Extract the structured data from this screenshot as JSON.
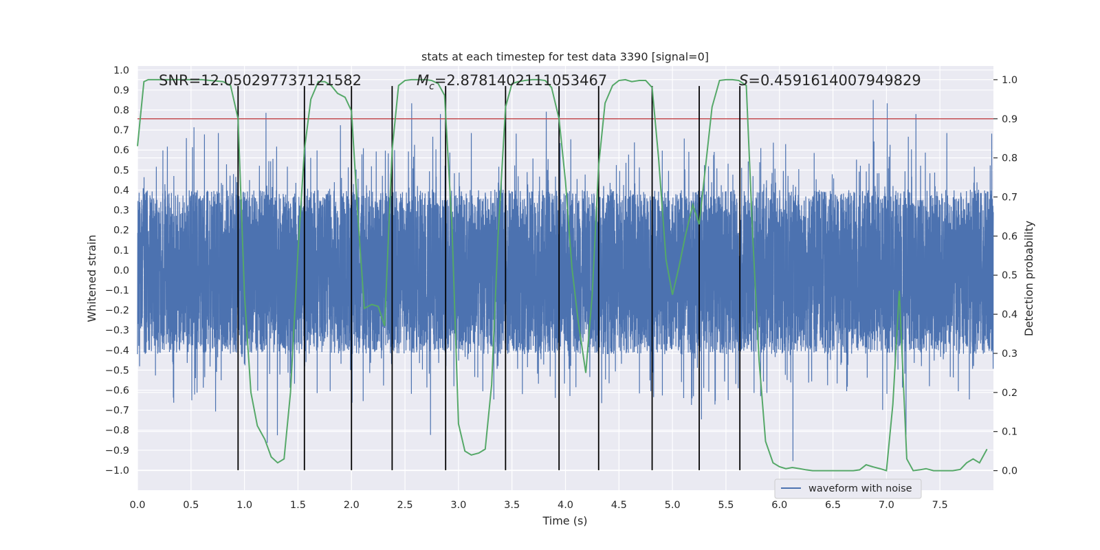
{
  "chart_data": {
    "type": "line",
    "title": "stats at each timestep for test data 3390 [signal=0]",
    "xlabel": "Time (s)",
    "ylabel": "Whitened strain",
    "y2label": "Detection probability",
    "xlim": [
      0,
      8
    ],
    "ylim": [
      -1.1,
      1.02
    ],
    "y2lim": [
      -0.05,
      1.035
    ],
    "x_ticks": [
      0.0,
      0.5,
      1.0,
      1.5,
      2.0,
      2.5,
      3.0,
      3.5,
      4.0,
      4.5,
      5.0,
      5.5,
      6.0,
      6.5,
      7.0,
      7.5
    ],
    "x_tick_labels": [
      "0.0",
      "0.5",
      "1.0",
      "1.5",
      "2.0",
      "2.5",
      "3.0",
      "3.5",
      "4.0",
      "4.5",
      "5.0",
      "5.5",
      "6.0",
      "6.5",
      "7.0",
      "7.5"
    ],
    "y_ticks": [
      1.0,
      0.9,
      0.8,
      0.7,
      0.6,
      0.5,
      0.4,
      0.3,
      0.2,
      0.1,
      0.0,
      -0.1,
      -0.2,
      -0.3,
      -0.4,
      -0.5,
      -0.6,
      -0.7,
      -0.8,
      -0.9,
      -1.0
    ],
    "y_tick_labels": [
      "1.0",
      "0.9",
      "0.8",
      "0.7",
      "0.6",
      "0.5",
      "0.4",
      "0.3",
      "0.2",
      "0.1",
      "0.0",
      "−0.1",
      "−0.2",
      "−0.3",
      "−0.4",
      "−0.5",
      "−0.6",
      "−0.7",
      "−0.8",
      "−0.9",
      "−1.0"
    ],
    "y2_ticks": [
      1.0,
      0.9,
      0.8,
      0.7,
      0.6,
      0.5,
      0.4,
      0.3,
      0.2,
      0.1,
      0.0
    ],
    "y2_tick_labels": [
      "1.0",
      "0.9",
      "0.8",
      "0.7",
      "0.6",
      "0.5",
      "0.4",
      "0.3",
      "0.2",
      "0.1",
      "0.0"
    ],
    "grid": true,
    "legend": {
      "placement": "lower-center",
      "entries": [
        "waveform with noise"
      ]
    },
    "annotations": {
      "snr": "SNR=12.050297737121582",
      "mc_symbol": "M",
      "mc_sub": "c",
      "mc_value": "=2.8781402111053467",
      "s_symbol": "S",
      "s_value": "=0.4591614007949829"
    },
    "threshold": 0.9,
    "vertical_lines_x": [
      0.94,
      1.56,
      2.0,
      2.38,
      2.88,
      3.44,
      3.94,
      4.31,
      4.81,
      5.25,
      5.63
    ],
    "series": [
      {
        "name": "waveform with noise",
        "axis": "left",
        "style": "noise",
        "core_range": [
          -0.42,
          0.4
        ],
        "spike_range": [
          -0.98,
          0.93
        ]
      },
      {
        "axis": "right",
        "style": "line",
        "x": [
          0.0,
          0.06,
          0.1,
          0.2,
          0.4,
          0.6,
          0.8,
          0.87,
          0.94,
          1.0,
          1.06,
          1.12,
          1.19,
          1.25,
          1.31,
          1.37,
          1.43,
          1.5,
          1.56,
          1.62,
          1.69,
          1.75,
          1.81,
          1.87,
          1.94,
          2.0,
          2.06,
          2.12,
          2.19,
          2.25,
          2.31,
          2.38,
          2.44,
          2.5,
          2.56,
          2.62,
          2.69,
          2.75,
          2.81,
          2.87,
          2.94,
          3.0,
          3.06,
          3.12,
          3.19,
          3.25,
          3.31,
          3.37,
          3.44,
          3.5,
          3.56,
          3.62,
          3.69,
          3.75,
          3.81,
          3.87,
          3.94,
          4.0,
          4.06,
          4.12,
          4.19,
          4.25,
          4.31,
          4.37,
          4.44,
          4.5,
          4.56,
          4.62,
          4.69,
          4.75,
          4.81,
          4.87,
          4.94,
          5.0,
          5.06,
          5.12,
          5.19,
          5.25,
          5.31,
          5.37,
          5.44,
          5.5,
          5.56,
          5.62,
          5.69,
          5.75,
          5.81,
          5.87,
          5.94,
          6.0,
          6.06,
          6.12,
          6.19,
          6.25,
          6.31,
          6.37,
          6.44,
          6.5,
          6.56,
          6.62,
          6.69,
          6.75,
          6.81,
          6.87,
          6.94,
          7.0,
          7.06,
          7.12,
          7.19,
          7.25,
          7.31,
          7.37,
          7.44,
          7.5,
          7.56,
          7.62,
          7.69,
          7.75,
          7.81,
          7.87,
          7.94
        ],
        "values": [
          0.83,
          0.995,
          1.0,
          1.0,
          1.0,
          1.0,
          0.995,
          0.985,
          0.9,
          0.45,
          0.2,
          0.115,
          0.08,
          0.035,
          0.02,
          0.03,
          0.2,
          0.56,
          0.82,
          0.95,
          0.995,
          0.995,
          0.985,
          0.965,
          0.955,
          0.92,
          0.65,
          0.415,
          0.425,
          0.42,
          0.37,
          0.82,
          0.985,
          0.998,
          1.0,
          1.0,
          1.0,
          0.998,
          0.99,
          0.96,
          0.62,
          0.12,
          0.05,
          0.04,
          0.045,
          0.055,
          0.22,
          0.6,
          0.93,
          0.99,
          0.995,
          0.998,
          1.0,
          1.0,
          0.998,
          0.98,
          0.9,
          0.74,
          0.52,
          0.38,
          0.25,
          0.45,
          0.78,
          0.94,
          0.985,
          0.998,
          1.0,
          0.995,
          0.998,
          0.998,
          0.98,
          0.8,
          0.54,
          0.45,
          0.52,
          0.6,
          0.68,
          0.63,
          0.78,
          0.93,
          0.998,
          1.0,
          1.0,
          0.998,
          0.985,
          0.6,
          0.28,
          0.075,
          0.02,
          0.01,
          0.005,
          0.008,
          0.005,
          0.002,
          0.0,
          0.0,
          0.0,
          0.0,
          0.0,
          0.0,
          0.0,
          0.002,
          0.015,
          0.01,
          0.005,
          0.0,
          0.17,
          0.46,
          0.03,
          0.0,
          0.002,
          0.005,
          0.0,
          0.0,
          0.0,
          0.0,
          0.003,
          0.02,
          0.03,
          0.02,
          0.055
        ]
      }
    ],
    "colors": {
      "noise": "#4c72b0",
      "probability": "#55a868",
      "threshold": "#c44e52",
      "vlines": "#000000",
      "plot_bg": "#eaeaf2",
      "grid": "#ffffff"
    }
  }
}
